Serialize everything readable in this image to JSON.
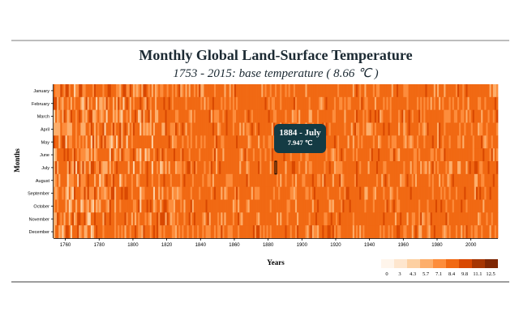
{
  "chart_data": {
    "type": "heatmap",
    "title": "Monthly Global Land-Surface Temperature",
    "subtitle": "1753 - 2015: base temperature ( 8.66 ℃ )",
    "xlabel": "Years",
    "ylabel": "Months",
    "x_range": [
      1753,
      2015
    ],
    "x_ticks": [
      "1760",
      "1780",
      "1800",
      "1820",
      "1840",
      "1860",
      "1880",
      "1900",
      "1920",
      "1940",
      "1960",
      "1980",
      "2000"
    ],
    "months": [
      "January",
      "February",
      "March",
      "April",
      "May",
      "June",
      "July",
      "August",
      "September",
      "October",
      "November",
      "December"
    ],
    "legend": {
      "thresholds": [
        "0",
        "3",
        "4.3",
        "5.7",
        "7.1",
        "8.4",
        "9.8",
        "11.1",
        "12.5"
      ],
      "colors": [
        "#fff5eb",
        "#fee6ce",
        "#fdd0a2",
        "#fdae6b",
        "#fd8d3c",
        "#f16913",
        "#d94801",
        "#a63603",
        "#7f2704"
      ]
    },
    "tooltip": {
      "year_month": "1884 - July",
      "value": "7.947 ℃"
    }
  }
}
